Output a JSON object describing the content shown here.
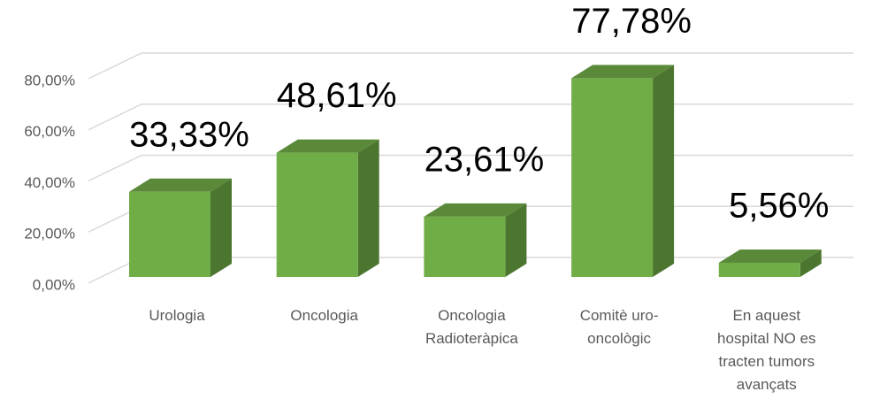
{
  "chart_data": {
    "type": "bar3d",
    "categories": [
      "Urologia",
      "Oncologia",
      "Oncologia Radioteràpica",
      "Comitè uro-oncològic",
      "En aquest hospital NO es tracten tumors avançats"
    ],
    "values": [
      33.33,
      48.61,
      23.61,
      77.78,
      5.56
    ],
    "value_labels": [
      "33,33%",
      "48,61%",
      "23,61%",
      "77,78%",
      "5,56%"
    ],
    "color": "#70ad47",
    "ylim": [
      0,
      80
    ],
    "yticks": [
      {
        "value": 0,
        "label": "0,00%"
      },
      {
        "value": 20,
        "label": "20,00%"
      },
      {
        "value": 40,
        "label": "40,00%"
      },
      {
        "value": 60,
        "label": "60,00%"
      },
      {
        "value": 80,
        "label": "80,00%"
      }
    ],
    "grid": true
  }
}
